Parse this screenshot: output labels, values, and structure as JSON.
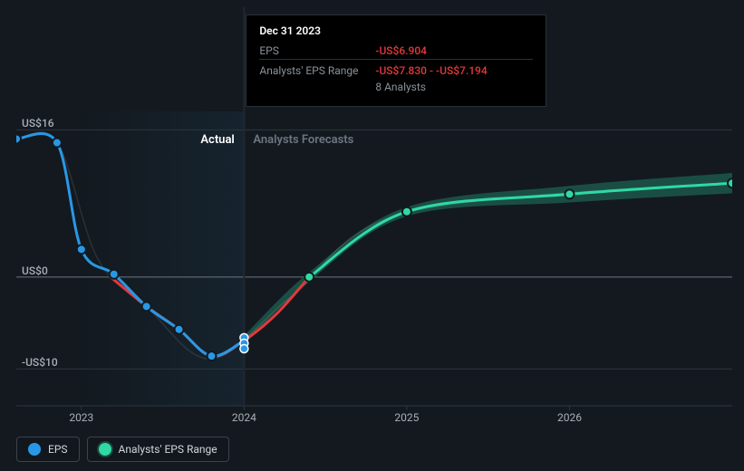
{
  "chart": {
    "type": "line",
    "background_color": "#13191f",
    "grid_line_color": "#2c3640",
    "baseline_color": "#6e7680",
    "font": {
      "family": "system-ui",
      "size_axis": 12,
      "size_region": 13
    },
    "xlim": [
      2022.6,
      2027.0
    ],
    "ylim": [
      -14,
      18
    ],
    "ytick_labels": [
      {
        "value": 16,
        "label": "US$16"
      },
      {
        "value": 0,
        "label": "US$0"
      },
      {
        "value": -10,
        "label": "-US$10"
      }
    ],
    "xtick_labels": [
      {
        "value": 2023,
        "label": "2023"
      },
      {
        "value": 2024,
        "label": "2024"
      },
      {
        "value": 2025,
        "label": "2025"
      },
      {
        "value": 2026,
        "label": "2026"
      }
    ],
    "actual_region_end": 2024.0,
    "region_labels": {
      "actual": "Actual",
      "forecast": "Analysts Forecasts"
    },
    "actual_label_color": "#ffffff",
    "forecast_label_color": "#6e7680",
    "actual_shade_color": "#193040",
    "actual_shade_opacity": 0.45,
    "cursor_line_color": "#202730",
    "series": {
      "eps_actual": {
        "color": "#2898e6",
        "line_width": 3,
        "marker": {
          "shape": "circle",
          "size": 5,
          "fill": "#2898e6",
          "stroke": "#13191f",
          "stroke_width": 2
        },
        "points": [
          {
            "x": 2022.6,
            "y": 15.0
          },
          {
            "x": 2022.85,
            "y": 14.6
          },
          {
            "x": 2023.0,
            "y": 3.0
          },
          {
            "x": 2023.2,
            "y": 0.3
          },
          {
            "x": 2023.4,
            "y": -3.2
          },
          {
            "x": 2023.6,
            "y": -5.7
          },
          {
            "x": 2023.8,
            "y": -8.6
          },
          {
            "x": 2024.0,
            "y": -6.9
          }
        ]
      },
      "eps_neg": {
        "color": "#e5383b",
        "line_width": 3,
        "points": [
          {
            "x": 2023.18,
            "y": 0.0
          },
          {
            "x": 2023.4,
            "y": -3.2
          },
          {
            "x": 2023.6,
            "y": -5.7
          },
          {
            "x": 2023.8,
            "y": -8.6
          },
          {
            "x": 2024.0,
            "y": -6.9
          },
          {
            "x": 2024.2,
            "y": -4.0
          },
          {
            "x": 2024.4,
            "y": 0.0
          }
        ]
      },
      "eps_glow": {
        "color": "#ffffff",
        "opacity": 0.1,
        "line_width": 1.5,
        "points": [
          {
            "x": 2022.6,
            "y": 15.0
          },
          {
            "x": 2022.85,
            "y": 14.7
          },
          {
            "x": 2023.1,
            "y": 2.0
          },
          {
            "x": 2023.4,
            "y": -3.2
          },
          {
            "x": 2023.8,
            "y": -8.9
          },
          {
            "x": 2024.3,
            "y": -2.0
          },
          {
            "x": 2025.0,
            "y": 7.0
          },
          {
            "x": 2027.0,
            "y": 10.3
          }
        ]
      },
      "eps_forecast": {
        "color": "#30d9a4",
        "line_width": 3,
        "marker": {
          "shape": "circle",
          "size": 5,
          "fill": "#30d9a4",
          "stroke": "#13191f",
          "stroke_width": 2
        },
        "points": [
          {
            "x": 2024.4,
            "y": 0.0
          },
          {
            "x": 2025.0,
            "y": 7.1
          },
          {
            "x": 2026.0,
            "y": 9.0
          },
          {
            "x": 2027.0,
            "y": 10.2
          }
        ]
      },
      "eps_range_band": {
        "color": "#30d9a4",
        "opacity": 0.28,
        "upper": [
          {
            "x": 2024.0,
            "y": -6.4
          },
          {
            "x": 2024.4,
            "y": 0.5
          },
          {
            "x": 2025.0,
            "y": 7.6
          },
          {
            "x": 2026.0,
            "y": 9.9
          },
          {
            "x": 2027.0,
            "y": 11.3
          }
        ],
        "lower": [
          {
            "x": 2024.0,
            "y": -7.4
          },
          {
            "x": 2024.4,
            "y": -0.5
          },
          {
            "x": 2025.0,
            "y": 6.6
          },
          {
            "x": 2026.0,
            "y": 8.1
          },
          {
            "x": 2027.0,
            "y": 9.1
          }
        ]
      },
      "cursor_points": {
        "x": 2024.0,
        "color": "#2898e6",
        "stroke": "#ffffff",
        "values": [
          -6.6,
          -7.2,
          -7.8
        ]
      }
    }
  },
  "tooltip": {
    "date": "Dec 31 2023",
    "rows": [
      {
        "key": "EPS",
        "value": "-US$6.904",
        "style": "neg"
      },
      {
        "key": "Analysts' EPS Range",
        "value": "-US$7.830 - -US$7.194",
        "style": "neg",
        "sep": true
      },
      {
        "key": "",
        "value": "8 Analysts",
        "style": "info"
      }
    ]
  },
  "legend": {
    "items": [
      {
        "label": "EPS",
        "color": "#2898e6",
        "range": false
      },
      {
        "label": "Analysts' EPS Range",
        "color": "#30d9a4",
        "range": true
      }
    ]
  }
}
